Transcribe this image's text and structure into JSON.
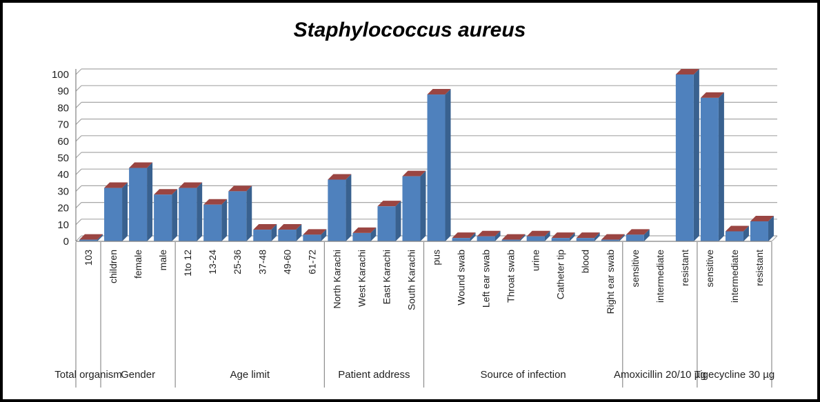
{
  "chart_data": {
    "type": "bar",
    "bar_style": "3d-column",
    "title": "Staphylococcus aureus",
    "xlabel": "",
    "ylabel": "",
    "grid": true,
    "legend": "none",
    "y_axis": {
      "min": 0,
      "max": 100,
      "step": 10,
      "tick_labels": [
        "0",
        "10",
        "20",
        "30",
        "40",
        "50",
        "60",
        "70",
        "80",
        "90",
        "100"
      ]
    },
    "groups": [
      {
        "label": "Total organism",
        "categories": [
          "103"
        ],
        "values": [
          1
        ]
      },
      {
        "label": "Gender",
        "categories": [
          "children",
          "female",
          "male"
        ],
        "values": [
          32,
          44,
          28
        ]
      },
      {
        "label": "Age limit",
        "categories": [
          "1to 12",
          "13-24",
          "25-36",
          "37-48",
          "49-60",
          "61-72"
        ],
        "values": [
          32,
          22,
          30,
          7,
          7,
          4
        ]
      },
      {
        "label": "Patient address",
        "categories": [
          "North Karachi",
          "West Karachi",
          "East Karachi",
          "South Karachi"
        ],
        "values": [
          37,
          5,
          21,
          39
        ]
      },
      {
        "label": "Source of infection",
        "categories": [
          "pus",
          "Wound swab",
          "Left ear swab",
          "Throat swab",
          "urine",
          "Catheter tip",
          "blood",
          "Right ear swab"
        ],
        "values": [
          88,
          2,
          3,
          1,
          3,
          2,
          2,
          1
        ]
      },
      {
        "label": "Amoxicillin 20/10 µg",
        "categories": [
          "sensitive",
          "intermediate",
          "resistant"
        ],
        "values": [
          4,
          0,
          100
        ]
      },
      {
        "label": "Tigecycline 30 µg",
        "categories": [
          "sensitive",
          "intermediate",
          "resistant"
        ],
        "values": [
          86,
          6,
          12
        ]
      }
    ],
    "colors": {
      "bar_front": "#4f81bd",
      "bar_side": "#39618f",
      "bar_top": "#9a4542",
      "gridline": "#a6a6a6",
      "axis_line": "#808080",
      "separator": "#8c8c8c",
      "text": "#1f1f1f",
      "frame": "#000000",
      "background": "#ffffff"
    }
  }
}
